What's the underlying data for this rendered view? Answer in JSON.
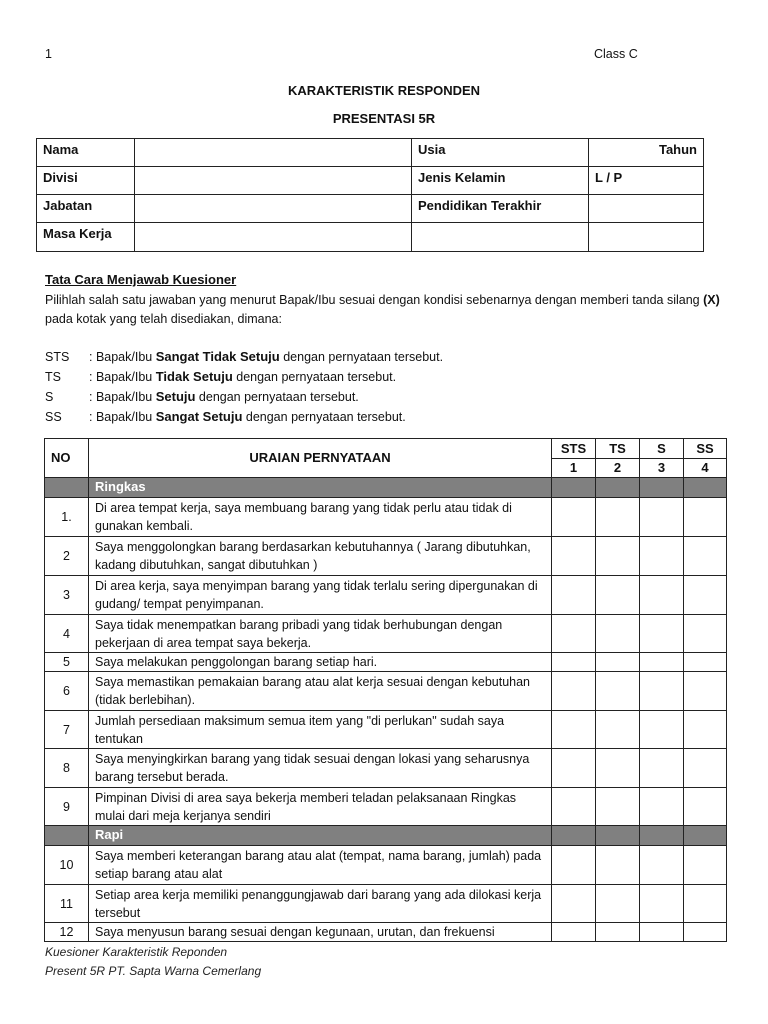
{
  "header": {
    "page_number": "1",
    "class_label": "Class C"
  },
  "title": "KARAKTERISTIK RESPONDEN",
  "subtitle": "PRESENTASI 5R",
  "respondent_table": [
    [
      "Nama",
      "",
      "Usia",
      "Tahun"
    ],
    [
      "Divisi",
      "",
      "Jenis Kelamin",
      "L / P"
    ],
    [
      "Jabatan",
      "",
      "Pendidikan Terakhir",
      ""
    ],
    [
      "Masa Kerja",
      "",
      "",
      ""
    ]
  ],
  "instructions": {
    "heading": "Tata Cara Menjawab Kuesioner",
    "text_a": "Pilihlah salah satu jawaban yang menurut Bapak/Ibu sesuai dengan kondisi sebenarnya dengan memberi tanda silang ",
    "mark": "(X)",
    "text_b": " pada kotak yang telah disediakan, dimana:",
    "legend": [
      {
        "code": "STS",
        "prefix": ": Bapak/Ibu ",
        "term": "Sangat Tidak Setuju",
        "suffix": " dengan pernyataan tersebut."
      },
      {
        "code": "TS",
        "prefix": ": Bapak/Ibu ",
        "term": "Tidak Setuju",
        "suffix": " dengan pernyataan tersebut."
      },
      {
        "code": "S",
        "prefix": ": Bapak/Ibu ",
        "term": "Setuju",
        "suffix": " dengan pernyataan tersebut."
      },
      {
        "code": "SS",
        "prefix": ": Bapak/Ibu ",
        "term": "Sangat Setuju",
        "suffix": " dengan pernyataan tersebut."
      }
    ]
  },
  "questionnaire": {
    "col_no": "NO",
    "col_statement": "URAIAN PERNYATAAN",
    "scale": [
      {
        "label": "STS",
        "value": "1"
      },
      {
        "label": "TS",
        "value": "2"
      },
      {
        "label": "S",
        "value": "3"
      },
      {
        "label": "SS",
        "value": "4"
      }
    ],
    "rows": [
      {
        "section": "Ringkas"
      },
      {
        "no": "1.",
        "text": "Di area tempat kerja, saya membuang barang yang tidak perlu atau tidak di gunakan kembali.",
        "h": 39
      },
      {
        "no": "2",
        "text": "Saya menggolongkan barang berdasarkan kebutuhannya ( Jarang dibutuhkan, kadang dibutuhkan, sangat dibutuhkan )",
        "h": 39
      },
      {
        "no": "3",
        "text": "Di area kerja, saya menyimpan barang yang tidak terlalu sering dipergunakan di gudang/ tempat penyimpanan.",
        "h": 39
      },
      {
        "no": "4",
        "text": "Saya tidak menempatkan barang pribadi yang tidak berhubungan dengan pekerjaan di area tempat saya bekerja.",
        "h": 38
      },
      {
        "no": "5",
        "text": "Saya melakukan penggolongan barang setiap hari.",
        "h": 19
      },
      {
        "no": "6",
        "text": "Saya memastikan pemakaian barang atau alat kerja sesuai dengan kebutuhan (tidak berlebihan).",
        "h": 39
      },
      {
        "no": "7",
        "text": "Jumlah persediaan maksimum semua item yang \"di perlukan\" sudah saya tentukan",
        "h": 38
      },
      {
        "no": "8",
        "text": "Saya menyingkirkan barang yang tidak sesuai dengan lokasi yang seharusnya barang tersebut berada.",
        "h": 39
      },
      {
        "no": "9",
        "text": "Pimpinan Divisi di area saya bekerja memberi teladan pelaksanaan Ringkas mulai dari meja kerjanya sendiri",
        "h": 38
      },
      {
        "section": "Rapi"
      },
      {
        "no": "10",
        "text": "Saya memberi keterangan barang atau alat (tempat, nama barang, jumlah) pada setiap barang atau alat",
        "h": 39
      },
      {
        "no": "11",
        "text": "Setiap area kerja memiliki penanggungjawab dari barang yang ada dilokasi kerja tersebut",
        "h": 38
      },
      {
        "no": "12",
        "text": "Saya menyusun barang sesuai dengan kegunaan, urutan, dan frekuensi",
        "h": 19
      }
    ]
  },
  "footer": {
    "line1": "Kuesioner Karakteristik Reponden",
    "line2": "Present 5R PT. Sapta Warna Cemerlang"
  }
}
